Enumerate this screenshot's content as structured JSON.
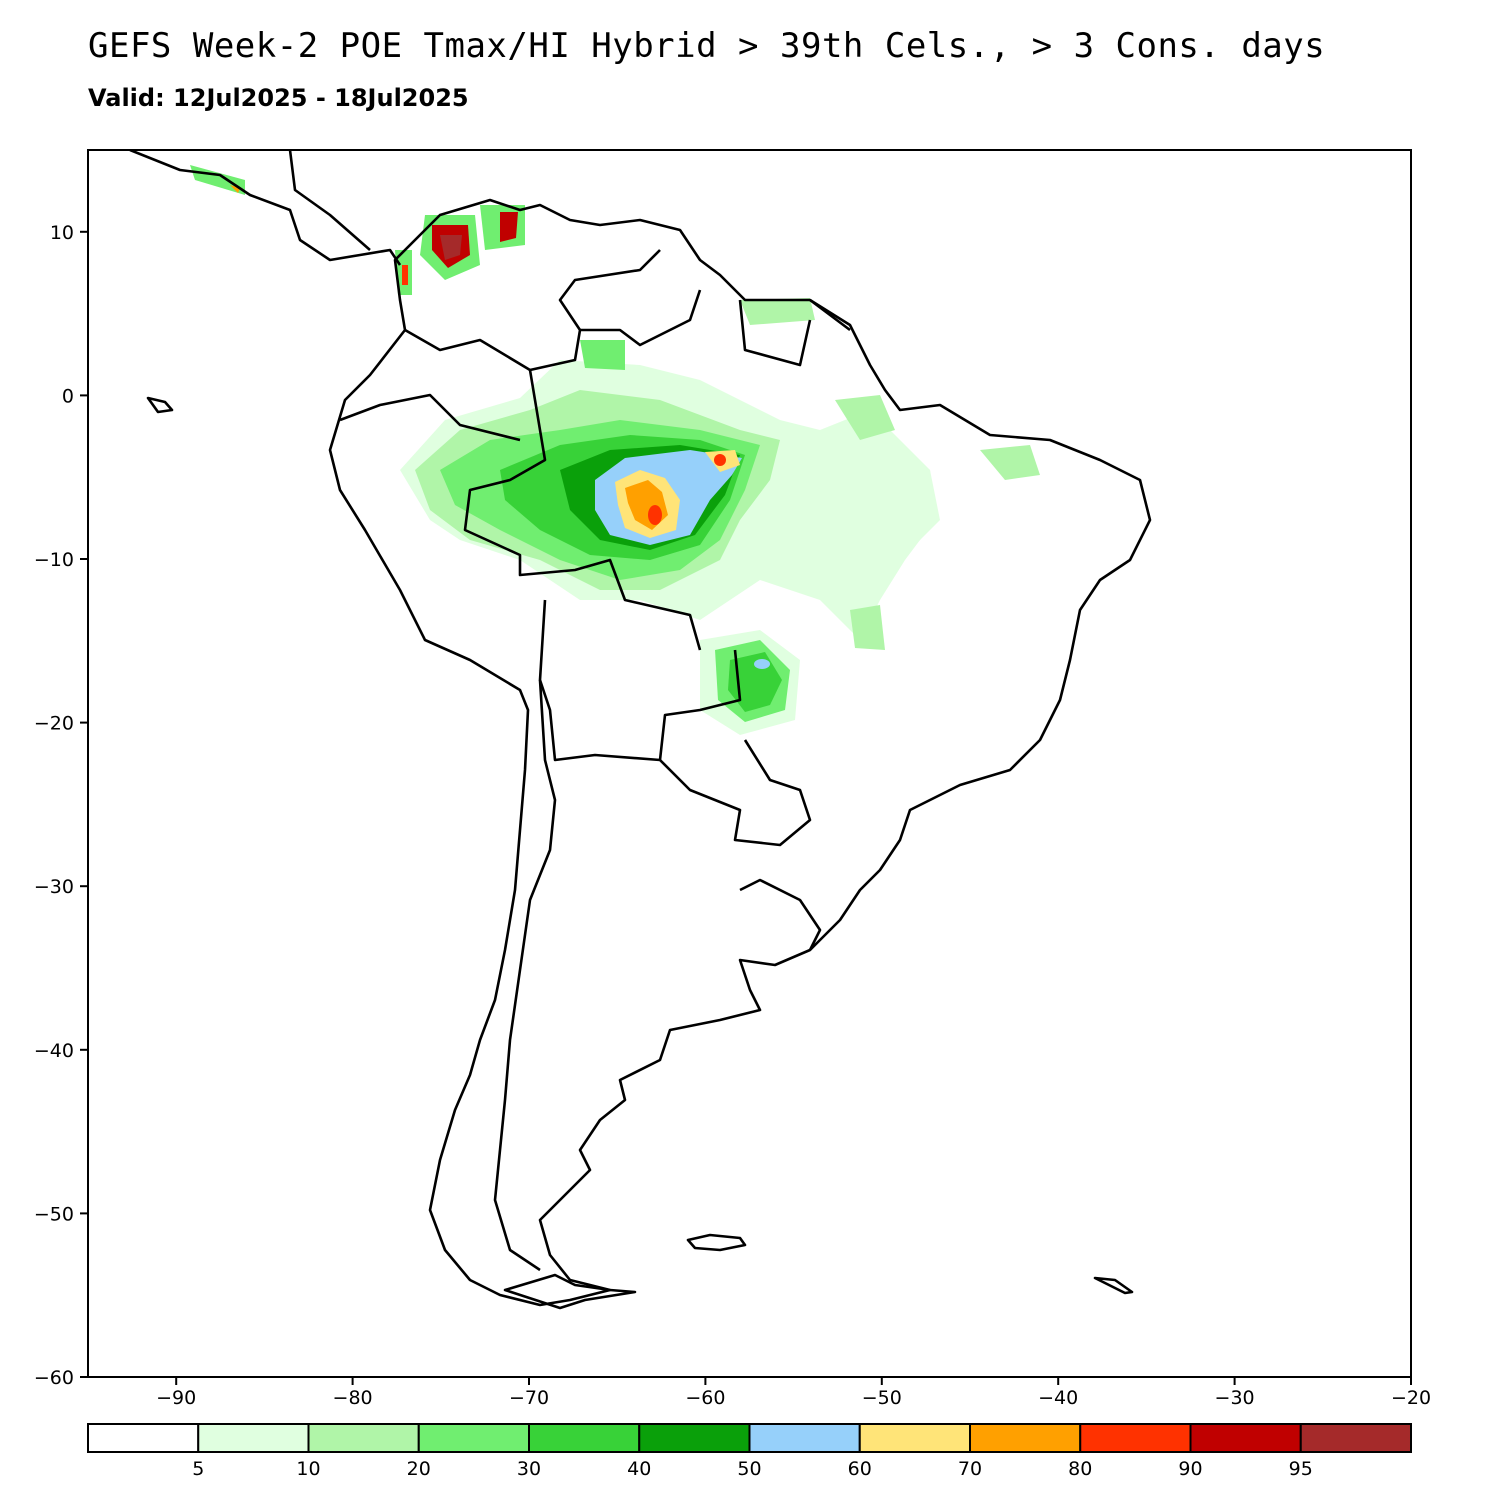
{
  "header": {
    "title": "GEFS Week-2 POE Tmax/HI Hybrid > 39th Cels., > 3 Cons. days",
    "valid": "Valid: 12Jul2025 - 18Jul2025"
  },
  "map": {
    "lon_range": [
      -95,
      -20
    ],
    "lat_range": [
      -60,
      15
    ],
    "x_ticks": [
      "-90",
      "-80",
      "-70",
      "-60",
      "-50",
      "-40",
      "-30",
      "-20"
    ],
    "y_ticks": [
      "10",
      "0",
      "-10",
      "-20",
      "-30",
      "-40",
      "-50",
      "-60"
    ]
  },
  "colorbar": {
    "labels": [
      "5",
      "10",
      "20",
      "30",
      "40",
      "50",
      "60",
      "70",
      "80",
      "90",
      "95"
    ],
    "colors": [
      "#ffffff",
      "#e0ffe0",
      "#b0f5a8",
      "#70ee70",
      "#38d238",
      "#0aa00a",
      "#96d0fa",
      "#ffe478",
      "#ffa000",
      "#ff3200",
      "#c00000",
      "#a52a2a"
    ]
  }
}
